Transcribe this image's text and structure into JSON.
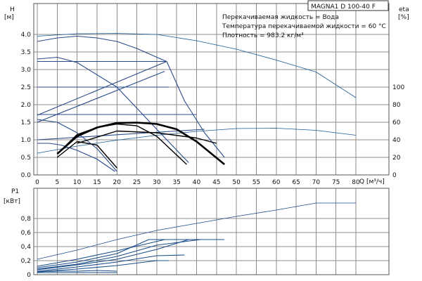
{
  "chart_data": [
    {
      "type": "line",
      "title": "MAGNA1 D 100-40 F",
      "annotations": [
        "Перекачиваемая жидкость = Вода",
        "Температура перекачиваемой жидкости = 60 °C",
        "Плотность = 983.2 кг/м³"
      ],
      "ylabel": "H",
      "ylabel_unit": "[м]",
      "y2label": "eta",
      "y2label_unit": "[%]",
      "xlabel": "Q [м³/ч]",
      "xlim": [
        0,
        85
      ],
      "ylim": [
        0,
        4.8
      ],
      "y2lim": [
        0,
        100
      ],
      "xticks": [
        0,
        5,
        10,
        15,
        20,
        25,
        30,
        35,
        40,
        45,
        50,
        55,
        60,
        65,
        70,
        75,
        80
      ],
      "yticks": [
        "0.0",
        "0.5",
        "1.0",
        "1.5",
        "2.0",
        "2.5",
        "3.0",
        "3.5",
        "4.0"
      ],
      "y2ticks": [
        0,
        20,
        40,
        60,
        80,
        100
      ],
      "grid": true,
      "colors": {
        "system": "#1a5a94",
        "performance": "#2a4a8a",
        "aux": "#000000"
      },
      "series": [
        {
          "group": "system",
          "x": [
            0,
            10,
            20,
            30,
            40,
            50,
            60,
            70,
            80
          ],
          "y": [
            3.95,
            4.02,
            4.03,
            4.0,
            3.82,
            3.58,
            3.27,
            2.93,
            2.2
          ]
        },
        {
          "group": "system",
          "x": [
            0,
            10,
            20,
            30,
            40,
            50,
            60,
            70,
            80
          ],
          "y": [
            0.62,
            0.82,
            0.99,
            1.13,
            1.24,
            1.32,
            1.33,
            1.27,
            1.13
          ]
        },
        {
          "group": "performance",
          "x": [
            0,
            5,
            10,
            15,
            20,
            25,
            30,
            32.5
          ],
          "y": [
            3.8,
            3.9,
            3.95,
            3.9,
            3.8,
            3.6,
            3.35,
            3.23
          ]
        },
        {
          "group": "performance",
          "x": [
            0,
            32.5
          ],
          "y": [
            3.23,
            3.23
          ]
        },
        {
          "group": "performance",
          "x": [
            32.5,
            37,
            42,
            47
          ],
          "y": [
            3.23,
            2.1,
            1.2,
            0.5
          ]
        },
        {
          "group": "performance",
          "x": [
            0,
            32.5
          ],
          "y": [
            1.7,
            3.23
          ]
        },
        {
          "group": "performance",
          "x": [
            0,
            33
          ],
          "y": [
            2.5,
            2.5
          ]
        },
        {
          "group": "performance",
          "x": [
            0,
            32
          ],
          "y": [
            1.5,
            2.95
          ]
        },
        {
          "group": "performance",
          "x": [
            0,
            40
          ],
          "y": [
            1.72,
            1.72
          ]
        },
        {
          "group": "performance",
          "x": [
            0,
            42
          ],
          "y": [
            1.0,
            1.3
          ]
        },
        {
          "group": "performance",
          "x": [
            0,
            5,
            10,
            15,
            20
          ],
          "y": [
            1.58,
            1.5,
            1.2,
            0.75,
            0.1
          ]
        },
        {
          "group": "performance",
          "x": [
            0,
            5,
            10,
            20,
            30,
            38
          ],
          "y": [
            3.3,
            3.35,
            3.2,
            2.5,
            1.3,
            0.35
          ]
        },
        {
          "group": "performance",
          "x": [
            0,
            3,
            6,
            10,
            15,
            19.5
          ],
          "y": [
            0.9,
            0.9,
            0.85,
            0.7,
            0.45,
            0.1
          ]
        },
        {
          "group": "aux",
          "x": [
            5,
            10,
            15,
            20,
            25,
            30,
            35,
            40,
            47
          ],
          "y": [
            0.6,
            1.1,
            1.35,
            1.48,
            1.49,
            1.45,
            1.3,
            0.95,
            0.3
          ]
        },
        {
          "group": "aux",
          "x": [
            5,
            10,
            15,
            20,
            25,
            30,
            37.5
          ],
          "y": [
            0.6,
            1.15,
            1.35,
            1.45,
            1.4,
            1.1,
            0.3
          ]
        },
        {
          "group": "aux",
          "x": [
            5,
            10,
            15,
            20
          ],
          "y": [
            0.5,
            0.95,
            0.85,
            0.2
          ]
        },
        {
          "group": "aux",
          "x": [
            10,
            20,
            30,
            40,
            45
          ],
          "y": [
            0.9,
            1.25,
            1.2,
            1.05,
            0.9
          ]
        }
      ]
    },
    {
      "type": "line",
      "ylabel": "P1",
      "ylabel_unit": "[кВт]",
      "xlim": [
        0,
        85
      ],
      "ylim": [
        0,
        1.0
      ],
      "yticks": [
        "0",
        "0,2",
        "0,4",
        "0,6",
        "0,8"
      ],
      "grid": true,
      "colors": {
        "lines": "#1a4c8a"
      },
      "series": [
        {
          "x": [
            0,
            10,
            20,
            30,
            40,
            50,
            60,
            70,
            80
          ],
          "y": [
            0.22,
            0.35,
            0.5,
            0.63,
            0.73,
            0.83,
            0.92,
            1.02,
            1.02
          ]
        },
        {
          "x": [
            0,
            10,
            20,
            32,
            47
          ],
          "y": [
            0.12,
            0.22,
            0.34,
            0.5,
            0.5
          ]
        },
        {
          "x": [
            0,
            10,
            20,
            28,
            45
          ],
          "y": [
            0.1,
            0.18,
            0.3,
            0.5,
            0.5
          ]
        },
        {
          "x": [
            0,
            10,
            20,
            30,
            41
          ],
          "y": [
            0.08,
            0.15,
            0.26,
            0.42,
            0.5
          ]
        },
        {
          "x": [
            0,
            10,
            20,
            30,
            38
          ],
          "y": [
            0.07,
            0.14,
            0.22,
            0.36,
            0.5
          ]
        },
        {
          "x": [
            0,
            10,
            20,
            30,
            37
          ],
          "y": [
            0.05,
            0.11,
            0.18,
            0.27,
            0.28
          ]
        },
        {
          "x": [
            0,
            10,
            20,
            30,
            33
          ],
          "y": [
            0.04,
            0.08,
            0.13,
            0.2,
            0.2
          ]
        },
        {
          "x": [
            0,
            5,
            10,
            15,
            20
          ],
          "y": [
            0.04,
            0.05,
            0.05,
            0.06,
            0.05
          ]
        },
        {
          "x": [
            0,
            20
          ],
          "y": [
            0.03,
            0.03
          ]
        }
      ]
    }
  ]
}
